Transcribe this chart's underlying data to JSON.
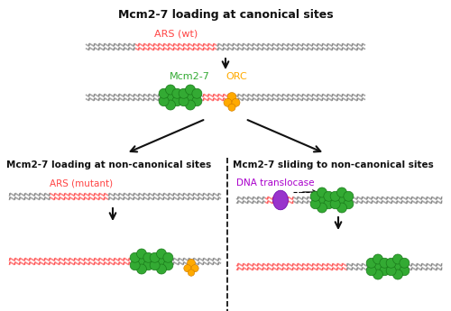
{
  "title": "Mcm2-7 loading at canonical sites",
  "bg_color": "#ffffff",
  "dna_color_gray": "#888888",
  "dna_color_red": "#ff5555",
  "mcm_color": "#33aa33",
  "mcm_edge": "#1a7a1a",
  "orc_color": "#ffaa00",
  "orc_edge": "#cc7700",
  "translocase_color": "#9933cc",
  "translocase_edge": "#6600aa",
  "arrow_color": "#111111",
  "text_color": "#111111",
  "red_text": "#ff4444",
  "purple_text": "#aa00cc",
  "green_text": "#33aa33",
  "orange_text": "#ffaa00",
  "label_left": "Mcm2-7 loading at non-canonical sites",
  "label_right": "Mcm2-7 sliding to non-canonical sites",
  "ars_wt": "ARS (wt)",
  "ars_mutant": "ARS (mutant)",
  "dna_translocase": "DNA translocase",
  "mcm_label": "Mcm2-7",
  "orc_label": "ORC",
  "figsize": [
    5.0,
    3.45
  ],
  "dpi": 100
}
